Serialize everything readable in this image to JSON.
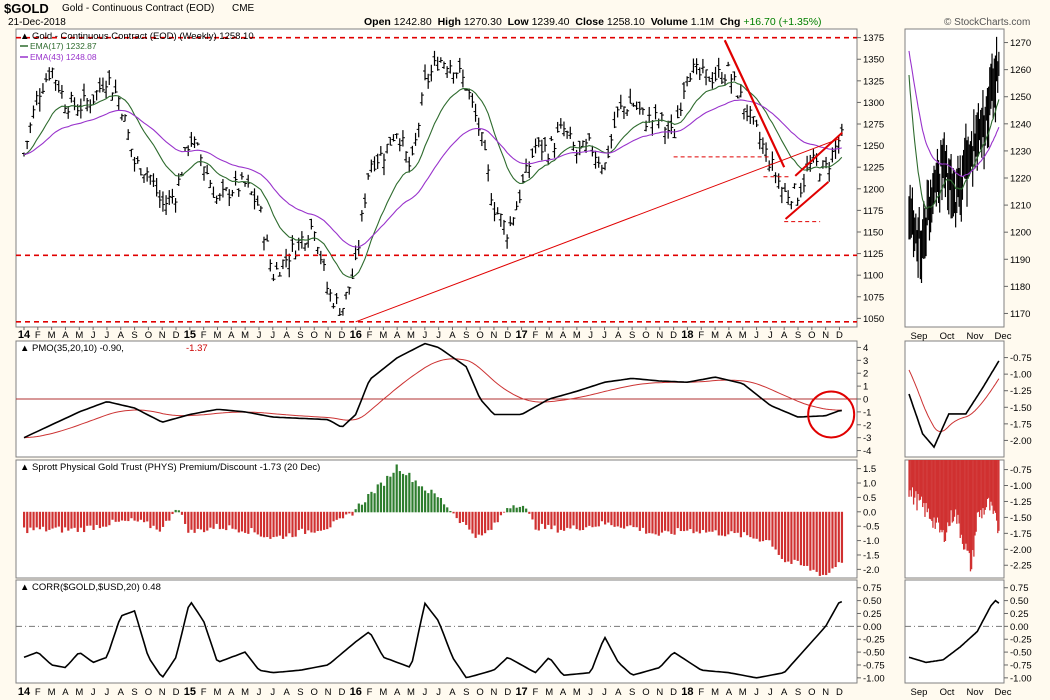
{
  "header": {
    "symbol": "$GOLD",
    "name": "Gold - Continuous Contract (EOD)",
    "exchange": "CME",
    "date": "21-Dec-2018",
    "watermark": "© StockCharts.com",
    "ohlc": {
      "open_label": "Open",
      "open": "1242.80",
      "high_label": "High",
      "high": "1270.30",
      "low_label": "Low",
      "low": "1239.40",
      "close_label": "Close",
      "close": "1258.10",
      "volume_label": "Volume",
      "volume": "1.1M",
      "chg_label": "Chg",
      "chg": "+16.70 (+1.35%)",
      "chg_color": "#008000"
    }
  },
  "chart_data": [
    {
      "panel": "price-weekly",
      "type": "line",
      "title": "Gold - Continuous Contract (EOD) (Weekly) 1258.10",
      "legend": [
        {
          "name": "EMA(17) 1232.87",
          "color": "#2e6b2e"
        },
        {
          "name": "EMA(43) 1248.08",
          "color": "#9933cc"
        }
      ],
      "legend_position": "top-left",
      "yticks": [
        1050,
        1075,
        1100,
        1125,
        1150,
        1175,
        1200,
        1225,
        1250,
        1275,
        1300,
        1325,
        1350,
        1375
      ],
      "ylim": [
        1040,
        1385
      ],
      "xlabels": [
        {
          "t": 0,
          "label": "14",
          "bold": true
        },
        {
          "t": 1,
          "label": "F"
        },
        {
          "t": 2,
          "label": "M"
        },
        {
          "t": 3,
          "label": "A"
        },
        {
          "t": 4,
          "label": "M"
        },
        {
          "t": 5,
          "label": "J"
        },
        {
          "t": 6,
          "label": "J"
        },
        {
          "t": 7,
          "label": "A"
        },
        {
          "t": 8,
          "label": "S"
        },
        {
          "t": 9,
          "label": "O"
        },
        {
          "t": 10,
          "label": "N"
        },
        {
          "t": 11,
          "label": "D"
        },
        {
          "t": 12,
          "label": "15",
          "bold": true
        },
        {
          "t": 13,
          "label": "F"
        },
        {
          "t": 14,
          "label": "M"
        },
        {
          "t": 15,
          "label": "A"
        },
        {
          "t": 16,
          "label": "M"
        },
        {
          "t": 17,
          "label": "J"
        },
        {
          "t": 18,
          "label": "J"
        },
        {
          "t": 19,
          "label": "A"
        },
        {
          "t": 20,
          "label": "S"
        },
        {
          "t": 21,
          "label": "O"
        },
        {
          "t": 22,
          "label": "N"
        },
        {
          "t": 23,
          "label": "D"
        },
        {
          "t": 24,
          "label": "16",
          "bold": true
        },
        {
          "t": 25,
          "label": "F"
        },
        {
          "t": 26,
          "label": "M"
        },
        {
          "t": 27,
          "label": "A"
        },
        {
          "t": 28,
          "label": "M"
        },
        {
          "t": 29,
          "label": "J"
        },
        {
          "t": 30,
          "label": "J"
        },
        {
          "t": 31,
          "label": "A"
        },
        {
          "t": 32,
          "label": "S"
        },
        {
          "t": 33,
          "label": "O"
        },
        {
          "t": 34,
          "label": "N"
        },
        {
          "t": 35,
          "label": "D"
        },
        {
          "t": 36,
          "label": "17",
          "bold": true
        },
        {
          "t": 37,
          "label": "F"
        },
        {
          "t": 38,
          "label": "M"
        },
        {
          "t": 39,
          "label": "A"
        },
        {
          "t": 40,
          "label": "M"
        },
        {
          "t": 41,
          "label": "J"
        },
        {
          "t": 42,
          "label": "J"
        },
        {
          "t": 43,
          "label": "A"
        },
        {
          "t": 44,
          "label": "S"
        },
        {
          "t": 45,
          "label": "O"
        },
        {
          "t": 46,
          "label": "N"
        },
        {
          "t": 47,
          "label": "D"
        },
        {
          "t": 48,
          "label": "18",
          "bold": true
        },
        {
          "t": 49,
          "label": "F"
        },
        {
          "t": 50,
          "label": "M"
        },
        {
          "t": 51,
          "label": "A"
        },
        {
          "t": 52,
          "label": "M"
        },
        {
          "t": 53,
          "label": "J"
        },
        {
          "t": 54,
          "label": "J"
        },
        {
          "t": 55,
          "label": "A"
        },
        {
          "t": 56,
          "label": "S"
        },
        {
          "t": 57,
          "label": "O"
        },
        {
          "t": 58,
          "label": "N"
        },
        {
          "t": 59,
          "label": "D"
        }
      ],
      "close_anchors": [
        [
          0,
          1240
        ],
        [
          1,
          1310
        ],
        [
          2,
          1340
        ],
        [
          3,
          1300
        ],
        [
          4,
          1295
        ],
        [
          5,
          1305
        ],
        [
          6,
          1330
        ],
        [
          7,
          1300
        ],
        [
          8,
          1230
        ],
        [
          9,
          1220
        ],
        [
          10,
          1180
        ],
        [
          11,
          1195
        ],
        [
          12,
          1260
        ],
        [
          13,
          1230
        ],
        [
          14,
          1185
        ],
        [
          15,
          1200
        ],
        [
          16,
          1205
        ],
        [
          17,
          1180
        ],
        [
          18,
          1100
        ],
        [
          19,
          1120
        ],
        [
          20,
          1140
        ],
        [
          21,
          1160
        ],
        [
          22,
          1080
        ],
        [
          23,
          1060
        ],
        [
          24,
          1110
        ],
        [
          25,
          1230
        ],
        [
          26,
          1240
        ],
        [
          27,
          1270
        ],
        [
          28,
          1220
        ],
        [
          29,
          1320
        ],
        [
          30,
          1350
        ],
        [
          31,
          1345
        ],
        [
          32,
          1320
        ],
        [
          33,
          1265
        ],
        [
          34,
          1180
        ],
        [
          35,
          1150
        ],
        [
          36,
          1200
        ],
        [
          37,
          1250
        ],
        [
          38,
          1245
        ],
        [
          39,
          1270
        ],
        [
          40,
          1240
        ],
        [
          41,
          1250
        ],
        [
          42,
          1225
        ],
        [
          43,
          1290
        ],
        [
          44,
          1300
        ],
        [
          45,
          1280
        ],
        [
          46,
          1280
        ],
        [
          47,
          1260
        ],
        [
          48,
          1340
        ],
        [
          49,
          1330
        ],
        [
          50,
          1330
        ],
        [
          51,
          1335
        ],
        [
          52,
          1300
        ],
        [
          53,
          1265
        ],
        [
          54,
          1230
        ],
        [
          55,
          1195
        ],
        [
          56,
          1195
        ],
        [
          57,
          1230
        ],
        [
          58,
          1222
        ],
        [
          59,
          1258
        ]
      ],
      "lines": [
        {
          "kind": "support",
          "value": 1375,
          "style": "dashed"
        },
        {
          "kind": "support",
          "value": 1123,
          "style": "dashed"
        },
        {
          "kind": "support",
          "value": 1046,
          "style": "dashed"
        },
        {
          "kind": "trend",
          "from": [
            24,
            1046
          ],
          "to": [
            59,
            1258
          ]
        }
      ]
    },
    {
      "panel": "pmo",
      "type": "line",
      "title": "PMO(35,20,10) -0.90, -1.37",
      "legend": [
        {
          "name": "-0.90",
          "color": "#000000"
        },
        {
          "name": "-1.37",
          "color": "#cc0000"
        }
      ],
      "yticks": [
        4,
        3,
        2,
        1,
        0,
        -1,
        -2,
        -3,
        -4
      ],
      "ylim": [
        -4.5,
        4.5
      ],
      "pmo_anchors": [
        [
          0,
          -3
        ],
        [
          2,
          -2
        ],
        [
          4,
          -1
        ],
        [
          6,
          -0.2
        ],
        [
          8,
          -0.7
        ],
        [
          10,
          -1.8
        ],
        [
          12,
          -1.2
        ],
        [
          14,
          -0.8
        ],
        [
          16,
          -1.0
        ],
        [
          18,
          -1.4
        ],
        [
          20,
          -1.5
        ],
        [
          22,
          -1.6
        ],
        [
          23,
          -2.2
        ],
        [
          24,
          -1.2
        ],
        [
          25,
          1.5
        ],
        [
          27,
          3.2
        ],
        [
          29,
          4.3
        ],
        [
          30,
          4.0
        ],
        [
          32,
          2.5
        ],
        [
          33,
          0
        ],
        [
          34,
          -1.2
        ],
        [
          36,
          -1.2
        ],
        [
          38,
          0
        ],
        [
          40,
          0.6
        ],
        [
          42,
          1.3
        ],
        [
          44,
          1.6
        ],
        [
          46,
          1.4
        ],
        [
          48,
          1.3
        ],
        [
          50,
          1.7
        ],
        [
          52,
          1.2
        ],
        [
          54,
          -0.5
        ],
        [
          56,
          -1.4
        ],
        [
          58,
          -1.3
        ],
        [
          59,
          -0.9
        ]
      ]
    },
    {
      "panel": "phys-premium",
      "type": "bar",
      "title": "Sprott Physical Gold Trust (PHYS) Premium/Discount -1.73 (20 Dec)",
      "yticks": [
        1.5,
        1.0,
        0.5,
        0.0,
        -0.5,
        -1.0,
        -1.5,
        -2.0
      ],
      "ylim": [
        -2.3,
        1.8
      ],
      "anchors": [
        [
          0,
          -0.6
        ],
        [
          4,
          -0.6
        ],
        [
          6,
          -0.4
        ],
        [
          8,
          -0.3
        ],
        [
          10,
          -0.6
        ],
        [
          11,
          0.2
        ],
        [
          12,
          -0.7
        ],
        [
          14,
          -0.5
        ],
        [
          16,
          -0.6
        ],
        [
          18,
          -0.9
        ],
        [
          20,
          -0.7
        ],
        [
          22,
          -0.5
        ],
        [
          23,
          -0.3
        ],
        [
          24,
          0.1
        ],
        [
          25,
          0.6
        ],
        [
          26,
          1.0
        ],
        [
          27,
          1.6
        ],
        [
          28,
          1.2
        ],
        [
          29,
          0.8
        ],
        [
          30,
          0.5
        ],
        [
          31,
          0.0
        ],
        [
          32,
          -0.5
        ],
        [
          33,
          -0.9
        ],
        [
          34,
          -0.5
        ],
        [
          35,
          0.2
        ],
        [
          36,
          0.3
        ],
        [
          37,
          -0.5
        ],
        [
          39,
          -0.6
        ],
        [
          42,
          -0.4
        ],
        [
          44,
          -0.5
        ],
        [
          46,
          -0.8
        ],
        [
          48,
          -0.6
        ],
        [
          50,
          -0.7
        ],
        [
          52,
          -0.8
        ],
        [
          54,
          -1.0
        ],
        [
          55,
          -1.7
        ],
        [
          56,
          -1.8
        ],
        [
          58,
          -2.2
        ],
        [
          59,
          -1.7
        ]
      ]
    },
    {
      "panel": "correlation",
      "type": "line",
      "title": "CORR($GOLD,$USD,20) 0.48",
      "yticks": [
        0.75,
        0.5,
        0.25,
        0.0,
        -0.25,
        -0.5,
        -0.75,
        -1.0
      ],
      "ylim": [
        -1.1,
        0.9
      ],
      "anchors": [
        [
          0,
          -0.6
        ],
        [
          1,
          -0.5
        ],
        [
          2,
          -0.75
        ],
        [
          3,
          -0.8
        ],
        [
          4,
          -0.5
        ],
        [
          5,
          -0.7
        ],
        [
          6,
          -0.6
        ],
        [
          7,
          0.2
        ],
        [
          8,
          0.3
        ],
        [
          9,
          -0.6
        ],
        [
          10,
          -1.0
        ],
        [
          11,
          -0.6
        ],
        [
          12,
          0.5
        ],
        [
          13,
          0.1
        ],
        [
          14,
          -0.7
        ],
        [
          15,
          -0.6
        ],
        [
          16,
          -0.5
        ],
        [
          17,
          -0.85
        ],
        [
          18,
          -0.9
        ],
        [
          20,
          -0.85
        ],
        [
          22,
          -0.75
        ],
        [
          24,
          -0.3
        ],
        [
          25,
          -0.1
        ],
        [
          26,
          -0.6
        ],
        [
          28,
          -0.8
        ],
        [
          29,
          0.45
        ],
        [
          30,
          0.1
        ],
        [
          31,
          -0.6
        ],
        [
          32,
          -1.0
        ],
        [
          34,
          -0.85
        ],
        [
          35,
          -0.6
        ],
        [
          37,
          -0.9
        ],
        [
          38,
          -0.6
        ],
        [
          39,
          -0.95
        ],
        [
          41,
          -0.9
        ],
        [
          42,
          -0.2
        ],
        [
          43,
          -0.7
        ],
        [
          44,
          -0.95
        ],
        [
          46,
          -0.8
        ],
        [
          47,
          -0.5
        ],
        [
          49,
          -0.85
        ],
        [
          51,
          -0.9
        ],
        [
          53,
          -1.0
        ],
        [
          55,
          -0.9
        ],
        [
          56,
          -0.6
        ],
        [
          58,
          0.0
        ],
        [
          59,
          0.48
        ]
      ]
    }
  ],
  "zoom": {
    "xlabels": [
      "Sep",
      "Oct",
      "Nov",
      "Dec"
    ],
    "price_yticks": [
      1170,
      1180,
      1190,
      1200,
      1210,
      1220,
      1230,
      1240,
      1250,
      1260,
      1270
    ],
    "pmo_yticks": [
      -0.75,
      -1.0,
      -1.25,
      -1.5,
      -1.75,
      -2.0
    ],
    "phys_yticks": [
      -0.75,
      -1.0,
      -1.25,
      -1.5,
      -1.75,
      -2.0,
      -2.25
    ],
    "corr_yticks": [
      0.75,
      0.5,
      0.25,
      0.0,
      -0.25,
      -0.5,
      -0.75,
      -1.0
    ]
  },
  "colors": {
    "background": "#fffaef",
    "price_panel": "#ffffff",
    "frame": "#808080",
    "up": "#000000",
    "ema17": "#2e6b2e",
    "ema43": "#9933cc",
    "annotation_red": "#e00000",
    "phys_positive": "#2e7d2e",
    "phys_negative": "#d03030",
    "pmo_signal": "#cc3333"
  }
}
